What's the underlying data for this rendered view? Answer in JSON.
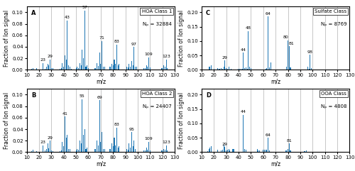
{
  "chart_data": [
    {
      "type": "bar",
      "xlabel": "m/z",
      "ylabel": "Fraction of Ion signal",
      "grid": "x",
      "xlim": [
        10,
        130
      ],
      "xticks": [
        10,
        20,
        30,
        40,
        50,
        60,
        70,
        80,
        90,
        100,
        110,
        120,
        130
      ],
      "ylim": [
        0,
        0.11
      ],
      "yticks": [
        {
          "value": 0.0,
          "label": "0.00"
        },
        0.02,
        0.04,
        0.06,
        0.08,
        {
          "value": 0.1,
          "label": "0.10"
        }
      ],
      "x": [
        11,
        12,
        13,
        14,
        15,
        16,
        17,
        18,
        19,
        20,
        23,
        24,
        25,
        26,
        27,
        28,
        29,
        30,
        31,
        32,
        33,
        37,
        38,
        39,
        40,
        41,
        42,
        43,
        44,
        45,
        46,
        50,
        51,
        52,
        53,
        54,
        55,
        56,
        57,
        58,
        59,
        60,
        65,
        66,
        67,
        68,
        69,
        70,
        71,
        72,
        73,
        77,
        78,
        79,
        80,
        81,
        82,
        83,
        84,
        85,
        91,
        92,
        93,
        94,
        95,
        96,
        97,
        98,
        99,
        105,
        106,
        107,
        108,
        109,
        110,
        119,
        120,
        121,
        122,
        123,
        124
      ],
      "values": [
        0.001,
        0.001,
        0.001,
        0.002,
        0.003,
        0.001,
        0.001,
        0.003,
        0.001,
        0.001,
        0.012,
        0.001,
        0.002,
        0.005,
        0.01,
        0.008,
        0.018,
        0.003,
        0.003,
        0.001,
        0.001,
        0.002,
        0.003,
        0.012,
        0.005,
        0.025,
        0.018,
        0.086,
        0.008,
        0.005,
        0.002,
        0.003,
        0.005,
        0.003,
        0.012,
        0.008,
        0.035,
        0.02,
        0.103,
        0.005,
        0.008,
        0.003,
        0.003,
        0.003,
        0.012,
        0.007,
        0.03,
        0.01,
        0.05,
        0.005,
        0.005,
        0.005,
        0.005,
        0.01,
        0.008,
        0.018,
        0.01,
        0.044,
        0.008,
        0.01,
        0.005,
        0.004,
        0.01,
        0.005,
        0.015,
        0.008,
        0.04,
        0.006,
        0.006,
        0.003,
        0.003,
        0.008,
        0.005,
        0.022,
        0.004,
        0.003,
        0.003,
        0.008,
        0.005,
        0.018,
        0.003
      ],
      "annotations": [
        {
          "text": "A"
        },
        {
          "text": "HOA Class 1"
        },
        {
          "text": "Nₚ = 32884"
        },
        {
          "x": 23,
          "y": 0.012,
          "text": "23"
        },
        {
          "x": 29,
          "y": 0.018,
          "text": "29"
        },
        {
          "x": 43,
          "y": 0.086,
          "text": "43"
        },
        {
          "x": 57,
          "y": 0.103,
          "text": "57"
        },
        {
          "x": 71,
          "y": 0.05,
          "text": "71"
        },
        {
          "x": 83,
          "y": 0.044,
          "text": "83"
        },
        {
          "x": 97,
          "y": 0.04,
          "text": "97"
        },
        {
          "x": 109,
          "y": 0.022,
          "text": "109"
        },
        {
          "x": 123,
          "y": 0.018,
          "text": "123"
        }
      ]
    },
    {
      "type": "bar",
      "xlabel": "m/z",
      "ylabel": "Fraction of Ion signal",
      "grid": "x",
      "xlim": [
        10,
        130
      ],
      "xticks": [
        10,
        20,
        30,
        40,
        50,
        60,
        70,
        80,
        90,
        100,
        110,
        120,
        130
      ],
      "ylim": [
        0,
        0.22
      ],
      "yticks": [
        {
          "value": 0.0,
          "label": "0.00"
        },
        0.05,
        {
          "value": 0.1,
          "label": "0.10"
        },
        0.15,
        {
          "value": 0.2,
          "label": "0.20"
        }
      ],
      "x": [
        11,
        12,
        13,
        14,
        15,
        16,
        17,
        18,
        19,
        20,
        23,
        24,
        25,
        26,
        27,
        28,
        29,
        30,
        31,
        32,
        34,
        35,
        40,
        41,
        42,
        43,
        44,
        45,
        46,
        47,
        48,
        49,
        50,
        62,
        63,
        64,
        65,
        66,
        79,
        80,
        81,
        82,
        96,
        97,
        98,
        99
      ],
      "values": [
        0.001,
        0.001,
        0.001,
        0.002,
        0.002,
        0.012,
        0.01,
        0.015,
        0.002,
        0.004,
        0.005,
        0.003,
        0.003,
        0.005,
        0.004,
        0.01,
        0.033,
        0.005,
        0.003,
        0.012,
        0.003,
        0.002,
        0.003,
        0.004,
        0.003,
        0.003,
        0.06,
        0.005,
        0.008,
        0.003,
        0.135,
        0.01,
        0.005,
        0.003,
        0.005,
        0.185,
        0.008,
        0.025,
        0.01,
        0.103,
        0.082,
        0.008,
        0.01,
        0.003,
        0.052,
        0.005
      ],
      "annotations": [
        {
          "text": "C"
        },
        {
          "text": "Sulfate Class"
        },
        {
          "text": "Nₚ = 8769"
        },
        {
          "x": 29,
          "y": 0.033,
          "text": "29"
        },
        {
          "x": 44,
          "y": 0.06,
          "text": "44"
        },
        {
          "x": 48,
          "y": 0.135,
          "text": "48"
        },
        {
          "x": 64,
          "y": 0.185,
          "text": "64"
        },
        {
          "x": 80,
          "y": 0.103,
          "text": "80"
        },
        {
          "x": 81,
          "y": 0.082,
          "text": "81"
        },
        {
          "x": 98,
          "y": 0.052,
          "text": "98"
        }
      ]
    },
    {
      "type": "bar",
      "xlabel": "m/z",
      "ylabel": "Fraction of Ion signal",
      "grid": "x",
      "xlim": [
        10,
        130
      ],
      "xticks": [
        10,
        20,
        30,
        40,
        50,
        60,
        70,
        80,
        90,
        100,
        110,
        120,
        130
      ],
      "ylim": [
        0,
        0.11
      ],
      "yticks": [
        {
          "value": 0.0,
          "label": "0.00"
        },
        0.02,
        0.04,
        0.06,
        0.08,
        {
          "value": 0.1,
          "label": "0.10"
        }
      ],
      "x": [
        11,
        12,
        13,
        14,
        15,
        16,
        17,
        18,
        19,
        23,
        24,
        25,
        26,
        27,
        28,
        29,
        30,
        31,
        37,
        38,
        39,
        40,
        41,
        42,
        43,
        44,
        45,
        50,
        51,
        52,
        53,
        54,
        55,
        56,
        57,
        58,
        59,
        65,
        66,
        67,
        68,
        69,
        70,
        71,
        72,
        73,
        77,
        78,
        79,
        80,
        81,
        82,
        83,
        84,
        85,
        91,
        92,
        93,
        94,
        95,
        96,
        97,
        98,
        105,
        106,
        107,
        108,
        109,
        110,
        119,
        120,
        121,
        122,
        123,
        124
      ],
      "values": [
        0.001,
        0.001,
        0.001,
        0.002,
        0.004,
        0.001,
        0.001,
        0.002,
        0.001,
        0.012,
        0.001,
        0.003,
        0.006,
        0.015,
        0.007,
        0.02,
        0.003,
        0.002,
        0.002,
        0.003,
        0.018,
        0.01,
        0.062,
        0.025,
        0.03,
        0.006,
        0.005,
        0.003,
        0.005,
        0.004,
        0.02,
        0.015,
        0.092,
        0.03,
        0.04,
        0.005,
        0.008,
        0.005,
        0.005,
        0.02,
        0.012,
        0.09,
        0.018,
        0.035,
        0.005,
        0.005,
        0.005,
        0.005,
        0.015,
        0.01,
        0.025,
        0.012,
        0.043,
        0.008,
        0.01,
        0.005,
        0.004,
        0.015,
        0.008,
        0.035,
        0.01,
        0.02,
        0.005,
        0.003,
        0.003,
        0.008,
        0.004,
        0.018,
        0.003,
        0.003,
        0.003,
        0.006,
        0.004,
        0.012,
        0.003
      ],
      "annotations": [
        {
          "text": "B"
        },
        {
          "text": "HOA Class 2"
        },
        {
          "text": "Nₚ = 24407"
        },
        {
          "x": 23,
          "y": 0.012,
          "text": "23"
        },
        {
          "x": 29,
          "y": 0.02,
          "text": "29"
        },
        {
          "x": 41,
          "y": 0.062,
          "text": "41"
        },
        {
          "x": 55,
          "y": 0.092,
          "text": "55"
        },
        {
          "x": 69,
          "y": 0.09,
          "text": "69"
        },
        {
          "x": 83,
          "y": 0.043,
          "text": "83"
        },
        {
          "x": 95,
          "y": 0.035,
          "text": "95"
        },
        {
          "x": 109,
          "y": 0.018,
          "text": "109"
        },
        {
          "x": 123,
          "y": 0.012,
          "text": "123"
        }
      ]
    },
    {
      "type": "bar",
      "xlabel": "m/z",
      "ylabel": "Fraction of Ion signal",
      "grid": "x",
      "xlim": [
        10,
        130
      ],
      "xticks": [
        10,
        20,
        30,
        40,
        50,
        60,
        70,
        80,
        90,
        100,
        110,
        120,
        130
      ],
      "ylim": [
        0,
        0.22
      ],
      "yticks": [
        {
          "value": 0.0,
          "label": "0.00"
        },
        0.05,
        {
          "value": 0.1,
          "label": "0.10"
        },
        0.15,
        {
          "value": 0.2,
          "label": "0.20"
        }
      ],
      "x": [
        14,
        15,
        16,
        17,
        18,
        23,
        26,
        27,
        28,
        29,
        30,
        31,
        32,
        33,
        35,
        36,
        44,
        45,
        46,
        55,
        56,
        57,
        60,
        61,
        62,
        63,
        64,
        65,
        78,
        79,
        80,
        81,
        82,
        93,
        94,
        95
      ],
      "values": [
        0.002,
        0.003,
        0.01,
        0.015,
        0.02,
        0.008,
        0.005,
        0.008,
        0.025,
        0.018,
        0.005,
        0.008,
        0.01,
        0.005,
        0.01,
        0.01,
        0.13,
        0.01,
        0.008,
        0.012,
        0.005,
        0.005,
        0.008,
        0.008,
        0.008,
        0.008,
        0.05,
        0.005,
        0.005,
        0.005,
        0.01,
        0.03,
        0.005,
        0.003,
        0.003,
        0.005
      ],
      "annotations": [
        {
          "text": "D"
        },
        {
          "text": "OOA Class"
        },
        {
          "text": "Nₚ = 4808"
        },
        {
          "x": 29,
          "y": 0.018,
          "text": "29"
        },
        {
          "x": 44,
          "y": 0.13,
          "text": "44"
        },
        {
          "x": 64,
          "y": 0.05,
          "text": "64"
        },
        {
          "x": 81,
          "y": 0.03,
          "text": "81"
        }
      ]
    }
  ]
}
